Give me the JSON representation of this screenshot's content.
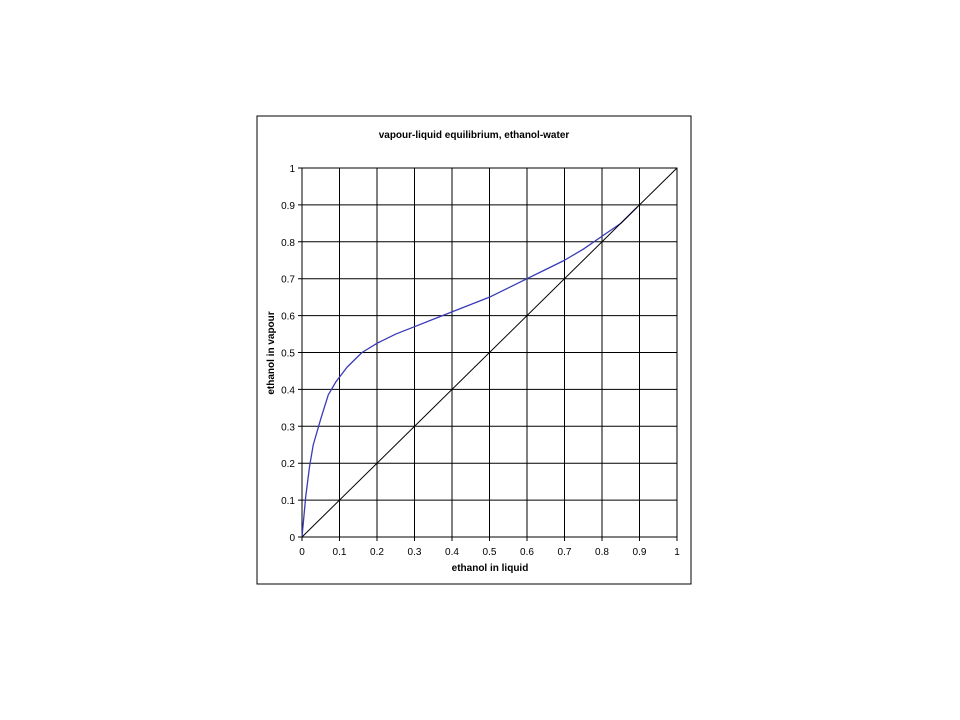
{
  "chart_data": {
    "type": "line",
    "title": "vapour-liquid equilibrium, ethanol-water",
    "xlabel": "ethanol in liquid",
    "ylabel": "ethanol in vapour",
    "xlim": [
      0,
      1
    ],
    "ylim": [
      0,
      1
    ],
    "x_ticks": [
      "0",
      "0.1",
      "0.2",
      "0.3",
      "0.4",
      "0.5",
      "0.6",
      "0.7",
      "0.8",
      "0.9",
      "1"
    ],
    "y_ticks": [
      "0",
      "0.1",
      "0.2",
      "0.3",
      "0.4",
      "0.5",
      "0.6",
      "0.7",
      "0.8",
      "0.9",
      "1"
    ],
    "grid": true,
    "legend": "none",
    "series": [
      {
        "color": "#3a3ab8",
        "x": [
          0,
          0.01,
          0.02,
          0.03,
          0.05,
          0.07,
          0.09,
          0.12,
          0.16,
          0.2,
          0.25,
          0.3,
          0.35,
          0.4,
          0.45,
          0.5,
          0.55,
          0.6,
          0.65,
          0.7,
          0.75,
          0.8,
          0.85,
          0.894
        ],
        "y": [
          0,
          0.11,
          0.19,
          0.25,
          0.32,
          0.385,
          0.42,
          0.46,
          0.5,
          0.525,
          0.55,
          0.57,
          0.59,
          0.61,
          0.63,
          0.65,
          0.675,
          0.7,
          0.725,
          0.75,
          0.78,
          0.815,
          0.85,
          0.894
        ]
      },
      {
        "color": "#000000",
        "x": [
          0,
          1
        ],
        "y": [
          0,
          1
        ]
      }
    ]
  }
}
